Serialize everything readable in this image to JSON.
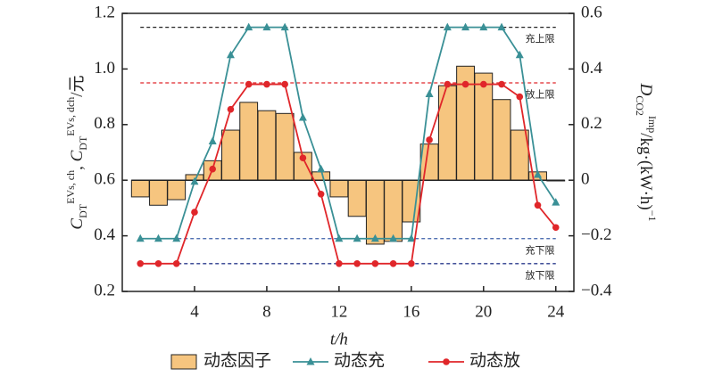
{
  "chart_data": {
    "type": "bar-line",
    "xlabel": "t/h",
    "ylabel": [
      "C",
      "DT",
      "EVs, ch",
      ", ",
      "C",
      "DT",
      "EVs, dch",
      "/元"
    ],
    "y2label": [
      "D",
      "CO2",
      "Imp",
      "/kg·(kW·h)",
      "−1"
    ],
    "x": [
      1,
      2,
      3,
      4,
      5,
      6,
      7,
      8,
      9,
      10,
      11,
      12,
      13,
      14,
      15,
      16,
      17,
      18,
      19,
      20,
      21,
      22,
      23,
      24
    ],
    "xlim": [
      0,
      25
    ],
    "xticks": [
      4,
      8,
      12,
      16,
      20,
      24
    ],
    "ylim": [
      0.2,
      1.2
    ],
    "yticks": [
      0.2,
      0.4,
      0.6,
      0.8,
      {
        "value": 1,
        "label": "1.0"
      },
      1.2
    ],
    "y2lim": [
      -0.4,
      0.6
    ],
    "y2ticks": [
      {
        "value": -0.4,
        "label": "−0.4"
      },
      {
        "value": -0.2,
        "label": "−0.2"
      },
      0,
      0.2,
      0.4,
      0.6
    ],
    "series": [
      {
        "name": "动态因子",
        "kind": "bar",
        "axis": "y2",
        "color": "#f6c57f",
        "values": [
          -0.06,
          -0.09,
          -0.07,
          0.02,
          0.07,
          0.18,
          0.28,
          0.25,
          0.24,
          0.1,
          0.03,
          -0.06,
          -0.13,
          -0.23,
          -0.22,
          -0.15,
          0.13,
          0.34,
          0.41,
          0.385,
          0.29,
          0.18,
          0.03,
          0
        ]
      },
      {
        "name": "动态充",
        "kind": "line",
        "marker": "triangle",
        "color": "#3a9096",
        "values": [
          0.39,
          0.39,
          0.39,
          0.595,
          0.74,
          1.05,
          1.15,
          1.15,
          1.15,
          0.825,
          0.64,
          0.39,
          0.39,
          0.39,
          0.39,
          0.39,
          0.91,
          1.15,
          1.15,
          1.15,
          1.15,
          1.05,
          0.62,
          0.52
        ]
      },
      {
        "name": "动态放",
        "kind": "line",
        "marker": "circle",
        "color": "#e0262a",
        "values": [
          0.3,
          0.3,
          0.3,
          0.485,
          0.64,
          0.855,
          0.945,
          0.945,
          0.945,
          0.68,
          0.55,
          0.3,
          0.3,
          0.3,
          0.3,
          0.3,
          0.745,
          0.945,
          0.945,
          0.945,
          0.945,
          0.9,
          0.51,
          0.43
        ]
      }
    ],
    "reference_lines": [
      {
        "value": 1.15,
        "label": "充上限",
        "color": "#222222"
      },
      {
        "value": 0.95,
        "label": "放上限",
        "color": "#e0262a"
      },
      {
        "value": 0.39,
        "label": "充下限",
        "color": "#3b5fa8"
      },
      {
        "value": 0.3,
        "label": "放下限",
        "color": "#2a3a8c"
      }
    ]
  }
}
